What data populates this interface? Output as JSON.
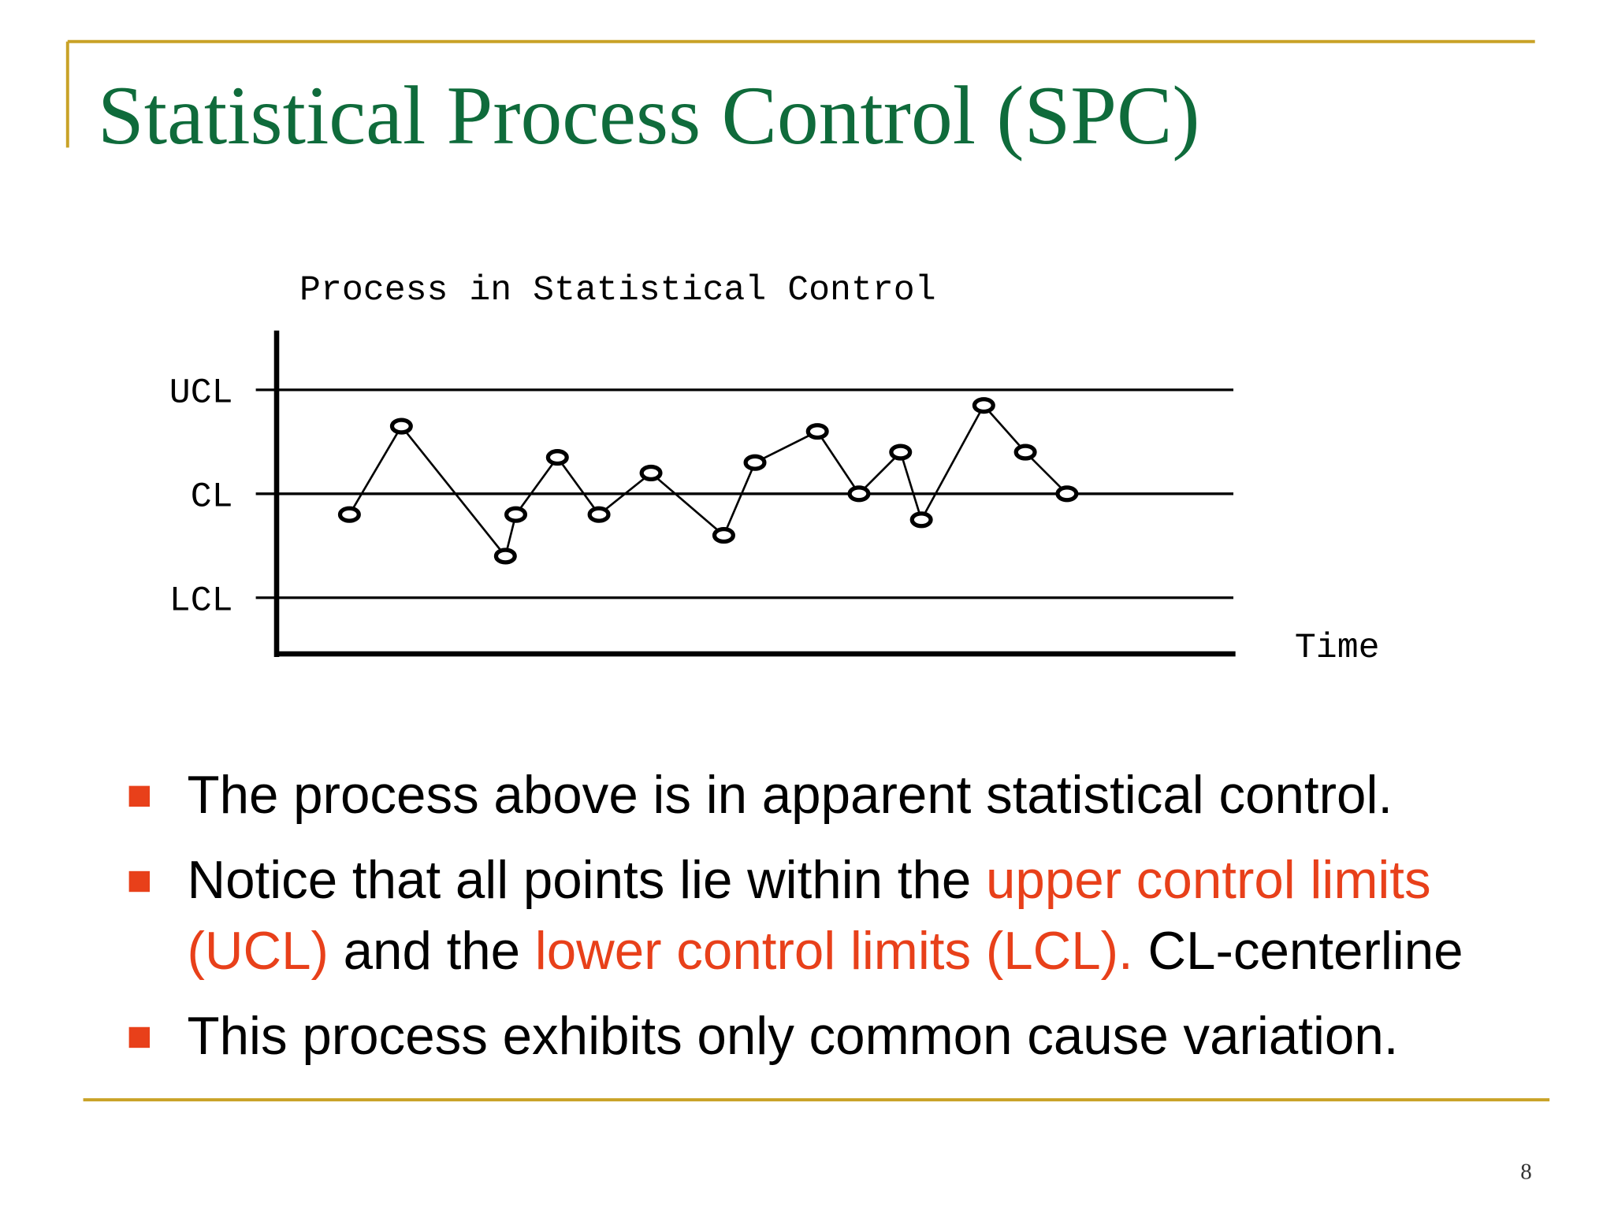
{
  "slide": {
    "title": "Statistical Process Control (SPC)",
    "page_number": "8"
  },
  "chart_data": {
    "type": "line",
    "title": "Process in Statistical Control",
    "xlabel": "Time",
    "x": [
      7,
      12,
      22,
      23,
      27,
      31,
      36,
      43,
      46,
      52,
      56,
      60,
      62,
      68,
      72,
      76
    ],
    "values": [
      -0.2,
      0.65,
      -0.6,
      -0.2,
      0.35,
      -0.2,
      0.2,
      -0.4,
      0.3,
      0.6,
      0,
      0.4,
      -0.25,
      0.85,
      0.4,
      0
    ],
    "color": "#000000",
    "xlim": [
      0,
      92
    ],
    "ylim": [
      -1.5,
      1.5
    ],
    "yticks": [
      {
        "value": 1,
        "label": "UCL"
      },
      {
        "value": 0,
        "label": "CL"
      },
      {
        "value": -1,
        "label": "LCL"
      }
    ],
    "grid": true
  },
  "bullets": [
    {
      "lines": [
        [
          "The process above is in apparent statistical control."
        ]
      ]
    },
    {
      "lines": [
        [
          "Notice that all points lie within the ",
          "upper control limits"
        ],
        [
          "(UCL)",
          " and the ",
          "lower control limits (LCL).",
          " CL-centerline"
        ]
      ]
    },
    {
      "lines": [
        [
          "This process exhibits only common cause variation."
        ]
      ]
    }
  ]
}
